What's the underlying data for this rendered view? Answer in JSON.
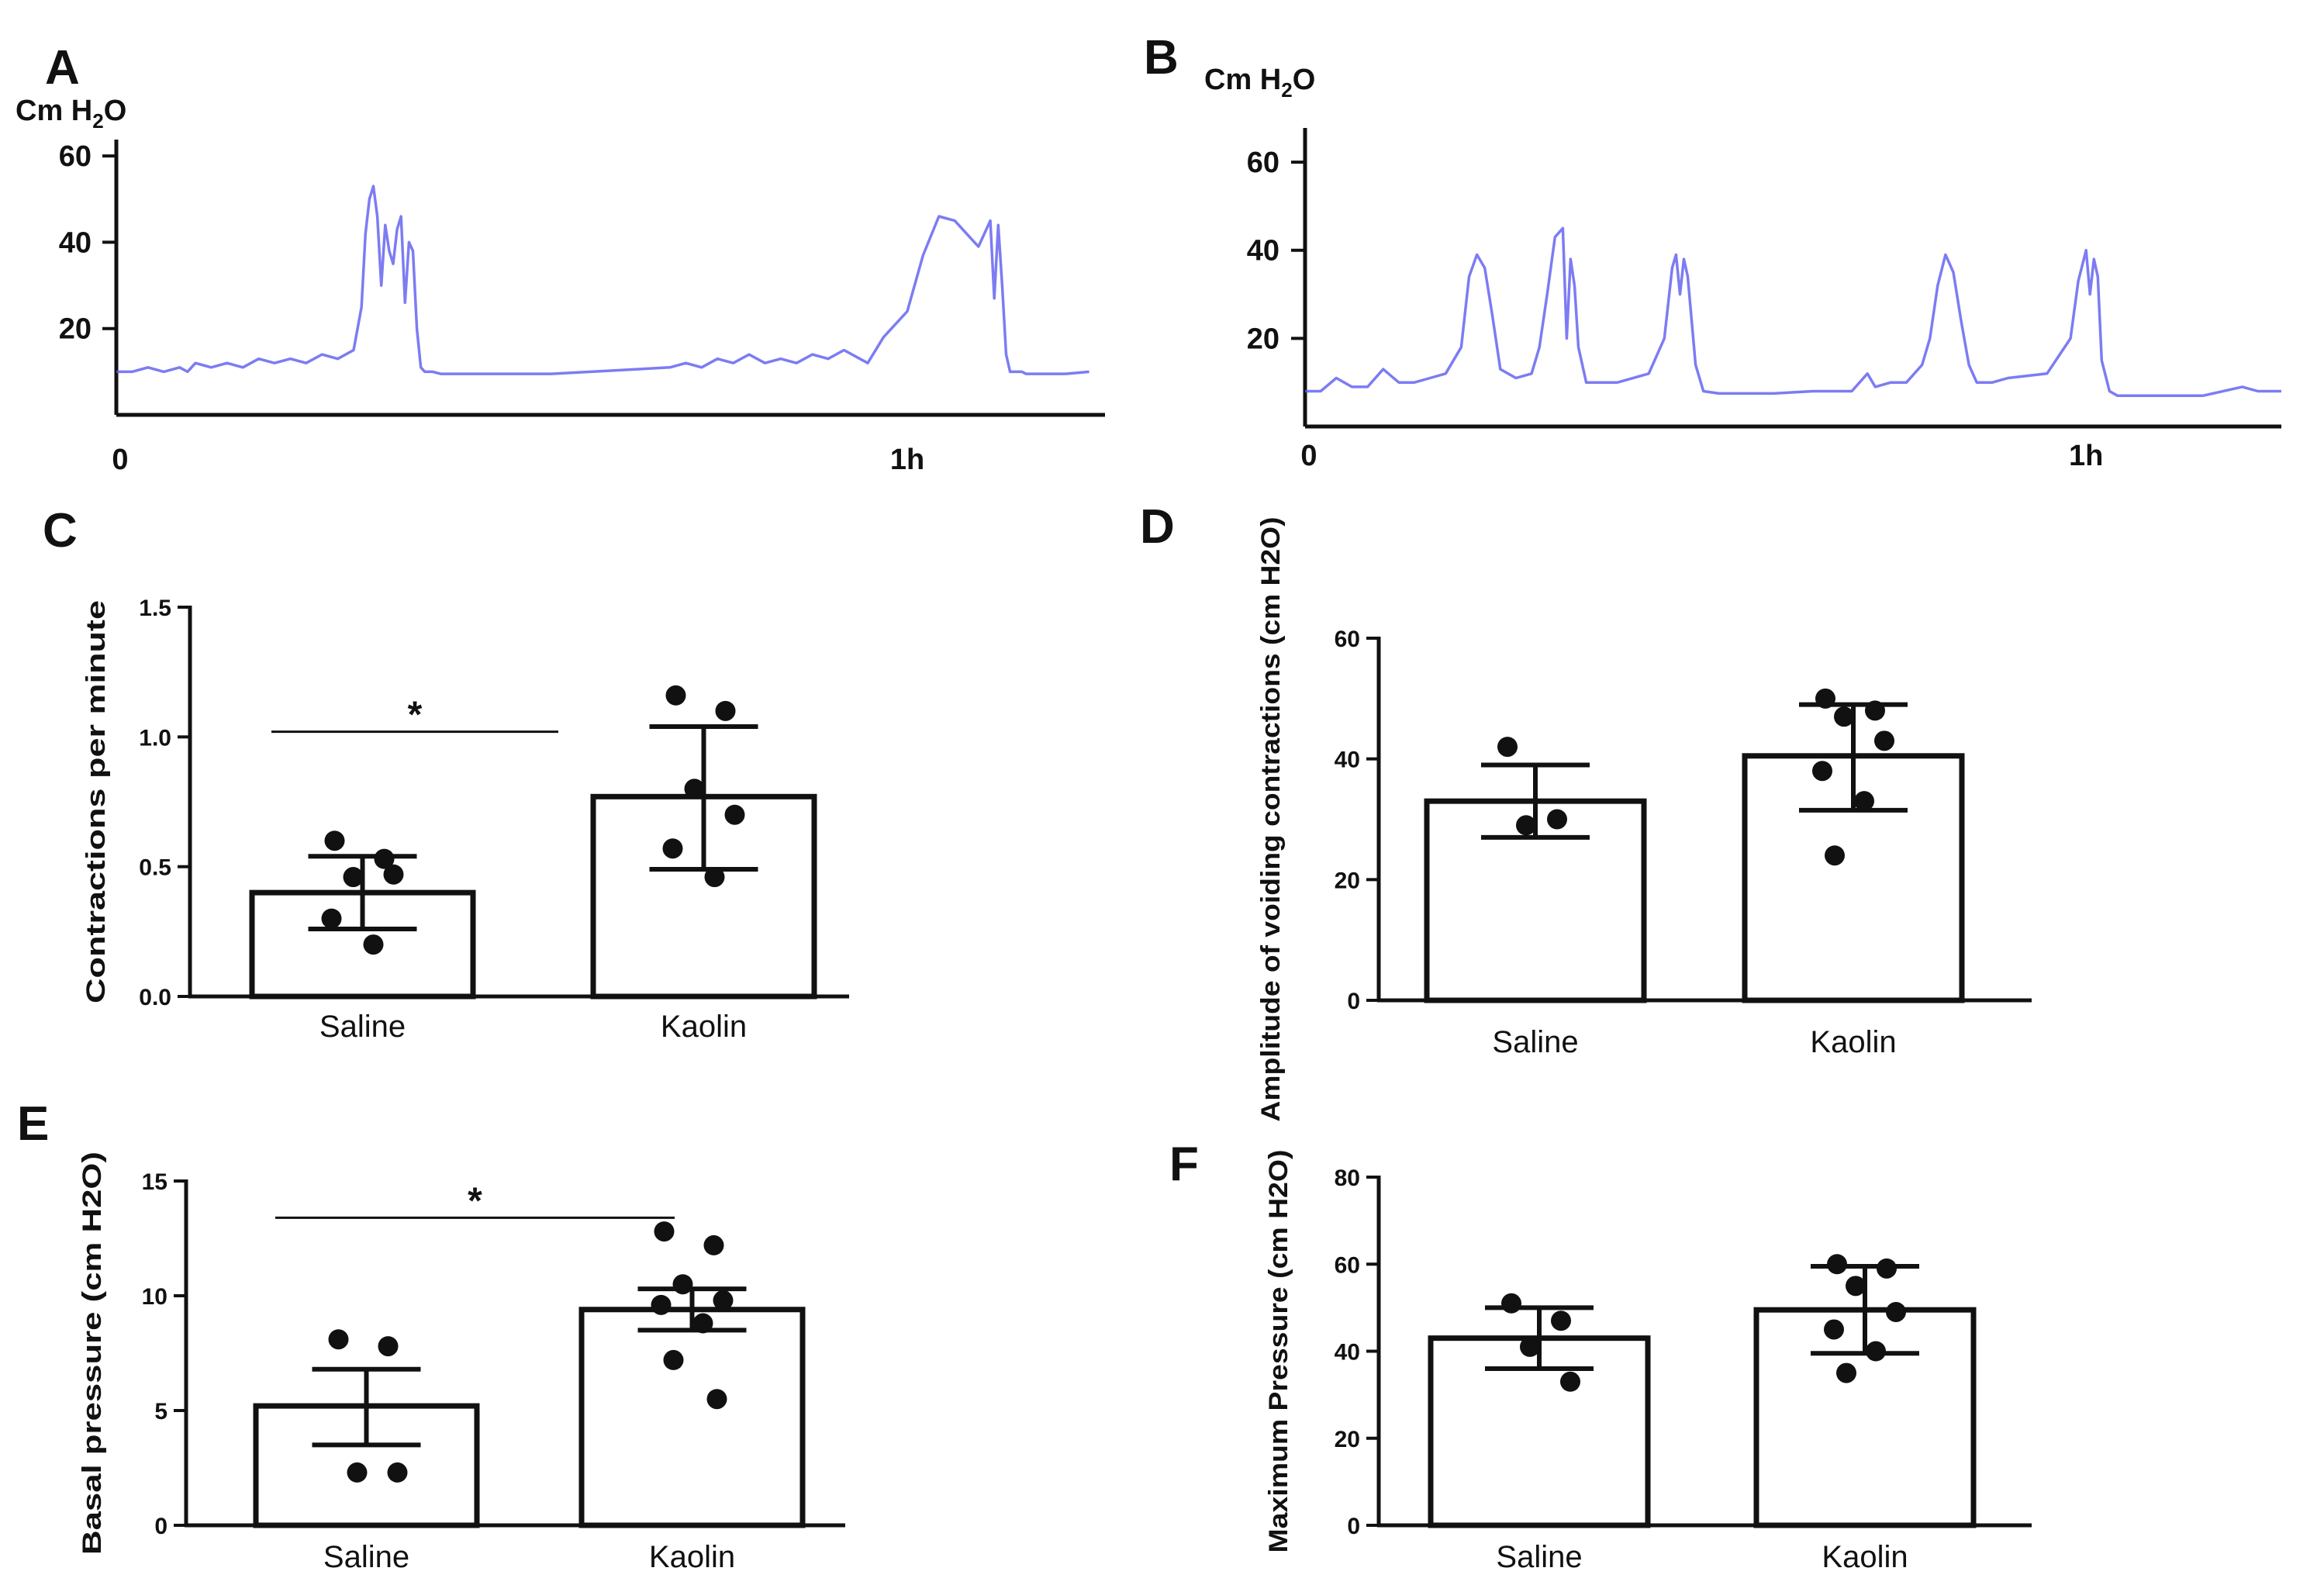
{
  "chart_data": [
    {
      "id": "A",
      "type": "line",
      "panel_label": "A",
      "y_unit_label": "Cm H",
      "y_unit_sub": "2",
      "y_unit_tail": "O",
      "yticks": [
        20,
        40,
        60
      ],
      "ylim": [
        0,
        62
      ],
      "xlim": [
        0,
        1.25
      ],
      "x_tick_labels": [
        {
          "value": 0,
          "label": "0"
        },
        {
          "value": 1.0,
          "label": "1h"
        }
      ],
      "color": "#5b5bf0",
      "series": [
        {
          "name": "trace A",
          "x": [
            0,
            0.02,
            0.04,
            0.06,
            0.08,
            0.09,
            0.1,
            0.12,
            0.14,
            0.16,
            0.18,
            0.2,
            0.22,
            0.24,
            0.26,
            0.28,
            0.3,
            0.31,
            0.315,
            0.32,
            0.325,
            0.33,
            0.335,
            0.34,
            0.345,
            0.35,
            0.355,
            0.36,
            0.365,
            0.37,
            0.375,
            0.38,
            0.385,
            0.39,
            0.395,
            0.4,
            0.41,
            0.42,
            0.45,
            0.5,
            0.55,
            0.6,
            0.65,
            0.7,
            0.72,
            0.74,
            0.76,
            0.78,
            0.8,
            0.82,
            0.84,
            0.86,
            0.88,
            0.9,
            0.92,
            0.95,
            0.97,
            1.0,
            1.02,
            1.04,
            1.06,
            1.08,
            1.09,
            1.1,
            1.105,
            1.11,
            1.115,
            1.12,
            1.125,
            1.13,
            1.135,
            1.14,
            1.145,
            1.15,
            1.16,
            1.17,
            1.2,
            1.23
          ],
          "y": [
            10,
            10,
            11,
            10,
            11,
            10,
            12,
            11,
            12,
            11,
            13,
            12,
            13,
            12,
            14,
            13,
            15,
            25,
            42,
            50,
            53,
            46,
            30,
            44,
            38,
            35,
            43,
            46,
            26,
            40,
            38,
            20,
            11,
            10,
            10,
            10,
            9.5,
            9.5,
            9.5,
            9.5,
            9.5,
            10,
            10.5,
            11,
            12,
            11,
            13,
            12,
            14,
            12,
            13,
            12,
            14,
            13,
            15,
            12,
            18,
            24,
            37,
            46,
            45,
            41,
            39,
            43,
            45,
            27,
            44,
            30,
            14,
            10,
            10,
            10,
            10,
            9.5,
            9.5,
            9.5,
            9.5,
            10
          ]
        }
      ]
    },
    {
      "id": "B",
      "type": "line",
      "panel_label": "B",
      "y_unit_label": "Cm H",
      "y_unit_sub": "2",
      "y_unit_tail": "O",
      "yticks": [
        20,
        40,
        60
      ],
      "ylim": [
        0,
        66
      ],
      "xlim": [
        0,
        1.25
      ],
      "x_tick_labels": [
        {
          "value": 0,
          "label": "0"
        },
        {
          "value": 1.0,
          "label": "1h"
        }
      ],
      "color": "#5b5bf0",
      "series": [
        {
          "name": "trace B",
          "x": [
            0,
            0.02,
            0.04,
            0.06,
            0.08,
            0.1,
            0.12,
            0.14,
            0.16,
            0.18,
            0.2,
            0.21,
            0.22,
            0.23,
            0.24,
            0.25,
            0.27,
            0.29,
            0.3,
            0.31,
            0.32,
            0.33,
            0.335,
            0.34,
            0.345,
            0.35,
            0.36,
            0.38,
            0.4,
            0.44,
            0.46,
            0.47,
            0.475,
            0.48,
            0.485,
            0.49,
            0.5,
            0.51,
            0.53,
            0.55,
            0.6,
            0.65,
            0.7,
            0.72,
            0.73,
            0.75,
            0.77,
            0.79,
            0.8,
            0.81,
            0.82,
            0.83,
            0.84,
            0.85,
            0.86,
            0.88,
            0.9,
            0.95,
            0.98,
            0.99,
            1.0,
            1.005,
            1.01,
            1.015,
            1.02,
            1.03,
            1.04,
            1.06,
            1.1,
            1.15,
            1.2,
            1.22,
            1.25
          ],
          "y": [
            8,
            8,
            11,
            9,
            9,
            13,
            10,
            10,
            11,
            12,
            18,
            34,
            39,
            36,
            25,
            13,
            11,
            12,
            18,
            30,
            43,
            45,
            20,
            38,
            32,
            18,
            10,
            10,
            10,
            12,
            20,
            36,
            39,
            30,
            38,
            34,
            14,
            8,
            7.5,
            7.5,
            7.5,
            8,
            8,
            12,
            9,
            10,
            10,
            14,
            20,
            32,
            39,
            35,
            24,
            14,
            10,
            10,
            11,
            12,
            20,
            33,
            40,
            30,
            38,
            34,
            15,
            8,
            7,
            7,
            7,
            7,
            9,
            8,
            8
          ]
        }
      ]
    },
    {
      "id": "C",
      "type": "bar",
      "panel_label": "C",
      "ylabel": "Contractions per minute",
      "ylim": [
        0.0,
        1.5
      ],
      "yticks": [
        "0.0",
        "0.5",
        "1.0",
        "1.5"
      ],
      "categories": [
        "Saline",
        "Kaolin"
      ],
      "values": [
        0.4,
        0.77
      ],
      "error_low": [
        0.26,
        0.49
      ],
      "error_high": [
        0.54,
        1.04
      ],
      "points": [
        [
          0.6,
          0.53,
          0.46,
          0.47,
          0.3,
          0.2
        ],
        [
          1.16,
          1.1,
          0.8,
          0.7,
          0.57,
          0.46
        ]
      ],
      "significance": {
        "label": "*",
        "y": 1.02
      }
    },
    {
      "id": "D",
      "type": "bar",
      "panel_label": "D",
      "ylabel": "Amplitude of voiding contractions (cm H2O)",
      "ylim": [
        0,
        60
      ],
      "yticks": [
        "0",
        "20",
        "40",
        "60"
      ],
      "categories": [
        "Saline",
        "Kaolin"
      ],
      "values": [
        33,
        40.5
      ],
      "error_low": [
        27,
        31.5
      ],
      "error_high": [
        39,
        49
      ],
      "points": [
        [
          42,
          30,
          29
        ],
        [
          50,
          48,
          47,
          43,
          38,
          33,
          24
        ]
      ],
      "significance": null
    },
    {
      "id": "E",
      "type": "bar",
      "panel_label": "E",
      "ylabel": "Basal pressure (cm H2O)",
      "ylim": [
        0,
        15
      ],
      "yticks": [
        "0",
        "5",
        "10",
        "15"
      ],
      "categories": [
        "Saline",
        "Kaolin"
      ],
      "values": [
        5.2,
        9.4
      ],
      "error_low": [
        3.5,
        8.5
      ],
      "error_high": [
        6.8,
        10.3
      ],
      "points": [
        [
          8.1,
          7.8,
          2.3,
          2.3
        ],
        [
          12.8,
          12.2,
          10.5,
          9.8,
          9.6,
          8.8,
          7.2,
          5.5
        ]
      ],
      "significance": {
        "label": "*",
        "y": 13.4
      }
    },
    {
      "id": "F",
      "type": "bar",
      "panel_label": "F",
      "ylabel": "Maximum Pressure (cm H2O)",
      "ylim": [
        0,
        80
      ],
      "yticks": [
        "0",
        "20",
        "40",
        "60",
        "80"
      ],
      "categories": [
        "Saline",
        "Kaolin"
      ],
      "values": [
        43,
        49.5
      ],
      "error_low": [
        36,
        39.5
      ],
      "error_high": [
        50,
        59.5
      ],
      "points": [
        [
          51,
          47,
          41,
          33
        ],
        [
          60,
          59,
          55,
          49,
          45,
          40,
          35
        ]
      ],
      "significance": null
    }
  ]
}
